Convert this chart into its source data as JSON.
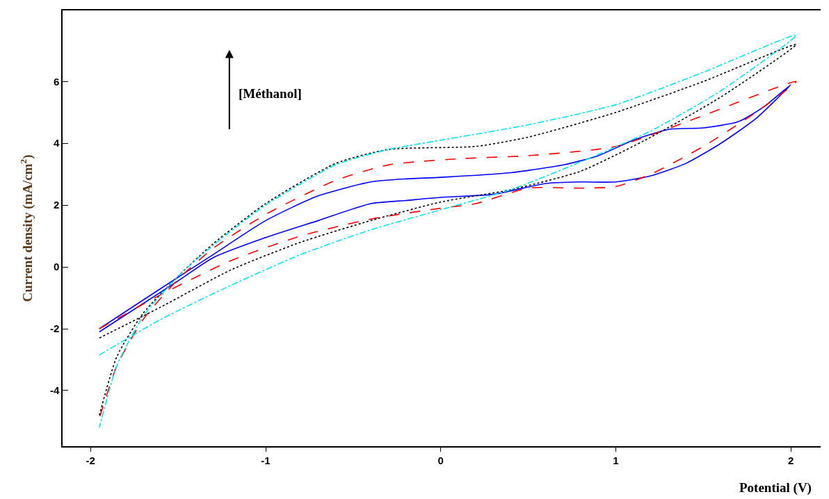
{
  "chart_data": {
    "type": "line",
    "xlabel": "Potential (V)",
    "ylabel": "Current density (mA/cm$^{2}$)",
    "xlim": [
      -2.16,
      2.17
    ],
    "ylim": [
      -5.8,
      8.3
    ],
    "xticks": [
      -2,
      -1,
      0,
      1,
      2
    ],
    "yticks": [
      -4,
      -2,
      0,
      2,
      4,
      6
    ],
    "marker": "none",
    "annotations": [
      "[Méthanol]"
    ],
    "series": [
      {
        "color": "#0000ff",
        "line_style": "solid",
        "x": [
          -1.95,
          -1.5,
          -1.3,
          -1.0,
          -0.7,
          -0.4,
          -0.2,
          0,
          0.3,
          0.6,
          0.8,
          1.0,
          1.2,
          1.4,
          1.6,
          1.8,
          2.0,
          1.85,
          1.7,
          1.5,
          1.3,
          1.1,
          0.9,
          0.7,
          0.4,
          0,
          -0.2,
          -0.4,
          -0.7,
          -1.0,
          -1.3,
          -1.6,
          -1.95
        ],
        "values": [
          -2.1,
          -0.45,
          0.3,
          0.95,
          1.5,
          2.05,
          2.15,
          2.25,
          2.35,
          2.7,
          2.75,
          2.75,
          2.95,
          3.35,
          4.0,
          4.8,
          5.9,
          5.2,
          4.7,
          4.5,
          4.45,
          4.1,
          3.6,
          3.3,
          3.05,
          2.9,
          2.85,
          2.75,
          2.3,
          1.5,
          0.4,
          -0.7,
          -2.0
        ]
      },
      {
        "color": "#ff0000",
        "line_style": "dashed",
        "x": [
          -1.95,
          -1.6,
          -1.2,
          -0.8,
          -0.4,
          0,
          0.2,
          0.5,
          0.8,
          1.0,
          1.2,
          1.5,
          1.8,
          2.03,
          1.5,
          1.0,
          0.5,
          0.1,
          -0.3,
          -0.6,
          -1.0,
          -1.3,
          -1.5,
          -1.7,
          -1.85,
          -1.95
        ],
        "values": [
          -2.0,
          -0.9,
          0.2,
          1.0,
          1.55,
          1.9,
          2.05,
          2.55,
          2.55,
          2.6,
          3.0,
          3.9,
          5.0,
          6.0,
          4.9,
          3.9,
          3.6,
          3.5,
          3.3,
          2.8,
          1.7,
          0.6,
          -0.4,
          -1.7,
          -3.2,
          -4.9
        ]
      },
      {
        "color": "#000000",
        "line_style": "dotted",
        "x": [
          -1.95,
          -1.6,
          -1.2,
          -0.8,
          -0.4,
          0,
          0.4,
          0.8,
          1.2,
          1.6,
          2.03,
          1.5,
          1.0,
          0.5,
          0.2,
          -0.3,
          -0.6,
          -1.0,
          -1.3,
          -1.5,
          -1.7,
          -1.85,
          -1.95
        ],
        "values": [
          -2.3,
          -1.3,
          -0.1,
          0.8,
          1.5,
          2.1,
          2.5,
          3.1,
          4.2,
          5.5,
          7.2,
          6.0,
          5.0,
          4.2,
          3.9,
          3.8,
          3.35,
          2.05,
          0.75,
          -0.3,
          -1.5,
          -2.9,
          -4.8
        ]
      },
      {
        "color": "#00e5ee",
        "line_style": "dashdot",
        "x": [
          -1.95,
          -1.6,
          -1.2,
          -0.8,
          -0.4,
          0,
          0.4,
          0.8,
          1.2,
          1.6,
          2.03,
          1.5,
          1.0,
          0.5,
          0,
          -0.3,
          -0.6,
          -1.0,
          -1.3,
          -1.5,
          -1.7,
          -1.85,
          -1.95
        ],
        "values": [
          -2.85,
          -1.7,
          -0.6,
          0.4,
          1.2,
          1.85,
          2.5,
          3.4,
          4.4,
          5.7,
          7.5,
          6.3,
          5.25,
          4.6,
          4.1,
          3.8,
          3.3,
          2.0,
          0.7,
          -0.3,
          -1.6,
          -3.2,
          -5.2
        ]
      }
    ]
  }
}
